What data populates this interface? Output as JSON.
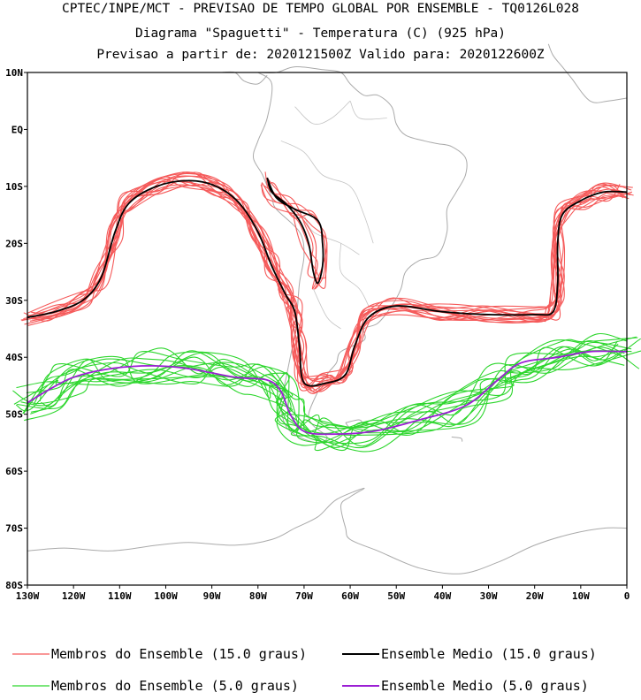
{
  "header": {
    "line1": "CPTEC/INPE/MCT - PREVISAO DE TEMPO GLOBAL POR ENSEMBLE - TQ0126L028",
    "line2": "Diagrama \"Spaguetti\" - Temperatura (C) (925 hPa)",
    "line3": "Previsao a partir de: 2020121500Z  Valido para: 2020122600Z"
  },
  "chart_data": {
    "type": "line",
    "title": "Diagrama \"Spaguetti\" - Temperatura (C) (925 hPa)",
    "xlim": [
      -130,
      0
    ],
    "ylim": [
      -80,
      10
    ],
    "y_ticks": [
      {
        "value": 10,
        "label": "10N"
      },
      {
        "value": 0,
        "label": "EQ"
      },
      {
        "value": -10,
        "label": "10S"
      },
      {
        "value": -20,
        "label": "20S"
      },
      {
        "value": -30,
        "label": "30S"
      },
      {
        "value": -40,
        "label": "40S"
      },
      {
        "value": -50,
        "label": "50S"
      },
      {
        "value": -60,
        "label": "60S"
      },
      {
        "value": -70,
        "label": "70S"
      },
      {
        "value": -80,
        "label": "80S"
      }
    ],
    "x_ticks": [
      {
        "value": -130,
        "label": "130W"
      },
      {
        "value": -120,
        "label": "120W"
      },
      {
        "value": -110,
        "label": "110W"
      },
      {
        "value": -100,
        "label": "100W"
      },
      {
        "value": -90,
        "label": "90W"
      },
      {
        "value": -80,
        "label": "80W"
      },
      {
        "value": -70,
        "label": "70W"
      },
      {
        "value": -60,
        "label": "60W"
      },
      {
        "value": -50,
        "label": "50W"
      },
      {
        "value": -40,
        "label": "40W"
      },
      {
        "value": -30,
        "label": "30W"
      },
      {
        "value": -20,
        "label": "20W"
      },
      {
        "value": -10,
        "label": "10W"
      },
      {
        "value": 0,
        "label": "0"
      }
    ],
    "series": [
      {
        "name": "Ensemble Medio (15.0 graus)",
        "color": "#000000",
        "points": [
          [
            -130,
            -33
          ],
          [
            -124,
            -32
          ],
          [
            -118,
            -30
          ],
          [
            -114,
            -26
          ],
          [
            -111,
            -18
          ],
          [
            -108,
            -13
          ],
          [
            -102,
            -10
          ],
          [
            -95,
            -9
          ],
          [
            -89,
            -10
          ],
          [
            -84,
            -13
          ],
          [
            -80,
            -18
          ],
          [
            -77,
            -24
          ],
          [
            -74,
            -29
          ],
          [
            -72,
            -32
          ],
          [
            -71,
            -38
          ],
          [
            -70,
            -44.5
          ],
          [
            -65,
            -44.5
          ],
          [
            -61,
            -43
          ],
          [
            -59,
            -38
          ],
          [
            -56,
            -33
          ],
          [
            -50,
            -31
          ],
          [
            -40,
            -32
          ],
          [
            -30,
            -32.5
          ],
          [
            -20,
            -32.5
          ],
          [
            -16,
            -32
          ],
          [
            -15,
            -27
          ],
          [
            -15,
            -20
          ],
          [
            -14,
            -15
          ],
          [
            -10,
            -12.5
          ],
          [
            -5,
            -11
          ],
          [
            0,
            -11
          ]
        ]
      },
      {
        "name": "Ensemble Medio (15.0 graus)",
        "color": "#000000",
        "points": [
          [
            -78,
            -8.5
          ],
          [
            -76,
            -12
          ],
          [
            -72,
            -14
          ],
          [
            -67,
            -16
          ],
          [
            -66,
            -20
          ],
          [
            -66,
            -24
          ],
          [
            -67,
            -27
          ],
          [
            -68,
            -25
          ],
          [
            -69,
            -20
          ],
          [
            -71,
            -16
          ],
          [
            -74,
            -13
          ],
          [
            -77,
            -11
          ],
          [
            -78,
            -8.5
          ]
        ]
      },
      {
        "name": "Ensemble Medio (5.0 graus)",
        "color": "#9b1fd4",
        "points": [
          [
            -130,
            -48
          ],
          [
            -126,
            -46
          ],
          [
            -120,
            -43.5
          ],
          [
            -112,
            -42
          ],
          [
            -103,
            -41.5
          ],
          [
            -95,
            -42
          ],
          [
            -85,
            -43.5
          ],
          [
            -78,
            -44
          ],
          [
            -75,
            -46
          ],
          [
            -73,
            -50
          ],
          [
            -70,
            -53
          ],
          [
            -64,
            -53.5
          ],
          [
            -55,
            -53
          ],
          [
            -45,
            -51
          ],
          [
            -35,
            -48.5
          ],
          [
            -28,
            -44
          ],
          [
            -23,
            -41
          ],
          [
            -15,
            -40
          ],
          [
            -8,
            -39
          ],
          [
            0,
            -39
          ]
        ]
      }
    ],
    "ensemble_members": [
      {
        "name": "Membros do Ensemble (15.0 graus)",
        "color": "#f55a5a",
        "count": 15,
        "base_series": 0
      },
      {
        "name": "Membros do Ensemble (15.0 graus)",
        "color": "#f55a5a",
        "count": 4,
        "base_series": 1
      },
      {
        "name": "Membros do Ensemble (5.0 graus)",
        "color": "#2dd62d",
        "count": 15,
        "base_series": 2
      }
    ]
  },
  "legend": {
    "items": [
      {
        "label": "Membros do Ensemble (15.0 graus)",
        "color": "#f55a5a"
      },
      {
        "label": "Ensemble Medio (15.0 graus)",
        "color": "#000000"
      },
      {
        "label": "Membros do Ensemble (5.0 graus)",
        "color": "#2dd62d"
      },
      {
        "label": "Ensemble Medio (5.0 graus)",
        "color": "#9b1fd4"
      }
    ]
  },
  "map": {
    "coast_color": "#aaaaaa"
  }
}
